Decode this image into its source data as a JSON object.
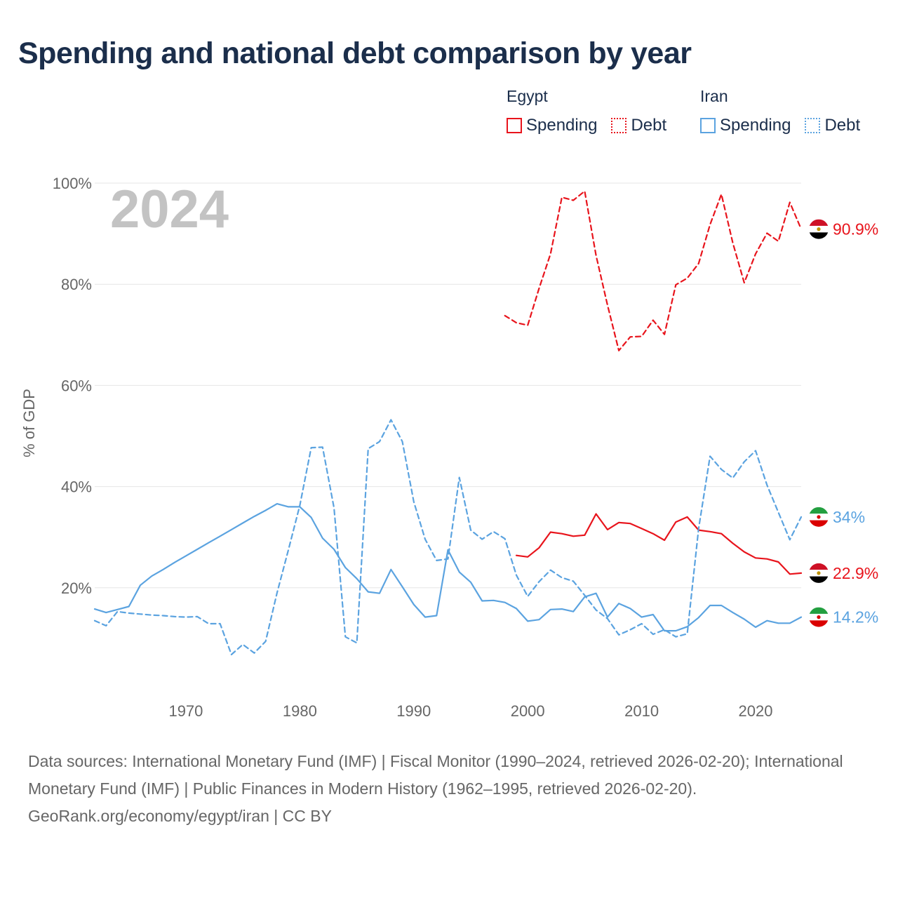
{
  "title": "Spending and national debt comparison by year",
  "year_watermark": "2024",
  "legend": {
    "groups": [
      {
        "country": "Egypt",
        "color": "#e8141c",
        "items": [
          {
            "label": "Spending",
            "style": "solid"
          },
          {
            "label": "Debt",
            "style": "dotted"
          }
        ]
      },
      {
        "country": "Iran",
        "color": "#5ba3e0",
        "items": [
          {
            "label": "Spending",
            "style": "solid"
          },
          {
            "label": "Debt",
            "style": "dotted"
          }
        ]
      }
    ]
  },
  "chart_data": {
    "type": "line",
    "title": "Spending and national debt comparison by year",
    "xlabel": "",
    "ylabel": "% of GDP",
    "xlim": [
      1962,
      2024
    ],
    "ylim": [
      0,
      100
    ],
    "x_ticks": [
      1970,
      1980,
      1990,
      2000,
      2010,
      2020
    ],
    "y_ticks": [
      20,
      40,
      60,
      80,
      100
    ],
    "y_tick_labels": [
      "20%",
      "40%",
      "60%",
      "80%",
      "100%"
    ],
    "grid": true,
    "series": [
      {
        "name": "Egypt Debt",
        "country": "Egypt",
        "metric": "Debt",
        "style": "dashed",
        "color": "#e8141c",
        "end_label": "90.9%",
        "x": [
          1998,
          1999,
          2000,
          2001,
          2002,
          2003,
          2004,
          2005,
          2006,
          2007,
          2008,
          2009,
          2010,
          2011,
          2012,
          2013,
          2014,
          2015,
          2016,
          2017,
          2018,
          2019,
          2020,
          2021,
          2022,
          2023,
          2024
        ],
        "y": [
          73.8,
          72.4,
          71.9,
          79.2,
          86.0,
          97.2,
          96.6,
          98.4,
          85.7,
          75.9,
          66.9,
          69.6,
          69.7,
          72.9,
          70.1,
          79.9,
          81.2,
          84.1,
          91.8,
          97.8,
          88.2,
          80.3,
          86.0,
          90.1,
          88.5,
          96.2,
          90.9
        ]
      },
      {
        "name": "Egypt Spending",
        "country": "Egypt",
        "metric": "Spending",
        "style": "solid",
        "color": "#e8141c",
        "end_label": "22.9%",
        "x": [
          1999,
          2000,
          2001,
          2002,
          2003,
          2004,
          2005,
          2006,
          2007,
          2008,
          2009,
          2010,
          2011,
          2012,
          2013,
          2014,
          2015,
          2016,
          2017,
          2018,
          2019,
          2020,
          2021,
          2022,
          2023,
          2024
        ],
        "y": [
          26.4,
          26.1,
          27.9,
          31.0,
          30.7,
          30.2,
          30.4,
          34.6,
          31.5,
          32.9,
          32.7,
          31.7,
          30.7,
          29.4,
          33.0,
          34.0,
          31.4,
          31.1,
          30.7,
          28.8,
          27.1,
          25.9,
          25.7,
          25.1,
          22.7,
          22.9
        ]
      },
      {
        "name": "Iran Debt",
        "country": "Iran",
        "metric": "Debt",
        "style": "dashed",
        "color": "#5ba3e0",
        "end_label": "34%",
        "x": [
          1962,
          1963,
          1964,
          1965,
          1966,
          1967,
          1968,
          1969,
          1970,
          1971,
          1972,
          1973,
          1974,
          1975,
          1976,
          1977,
          1978,
          1979,
          1980,
          1981,
          1982,
          1983,
          1984,
          1985,
          1986,
          1987,
          1988,
          1989,
          1990,
          1991,
          1992,
          1993,
          1994,
          1995,
          1996,
          1997,
          1998,
          1999,
          2000,
          2001,
          2002,
          2003,
          2004,
          2005,
          2006,
          2007,
          2008,
          2009,
          2010,
          2011,
          2012,
          2013,
          2014,
          2015,
          2016,
          2017,
          2018,
          2019,
          2020,
          2021,
          2022,
          2023,
          2024
        ],
        "y": [
          13.5,
          12.5,
          15.3,
          15.0,
          14.8,
          14.6,
          14.5,
          14.3,
          14.2,
          14.3,
          12.9,
          12.9,
          6.8,
          8.8,
          7.1,
          9.4,
          19.0,
          27.5,
          36.3,
          47.7,
          47.8,
          35.8,
          10.3,
          9.1,
          47.5,
          48.9,
          53.2,
          48.9,
          37.0,
          29.6,
          25.4,
          25.7,
          41.8,
          31.4,
          29.6,
          31.1,
          29.7,
          22.5,
          18.3,
          21.2,
          23.5,
          22.0,
          21.3,
          18.5,
          15.6,
          13.9,
          10.7,
          11.7,
          12.9,
          10.8,
          11.7,
          10.3,
          10.9,
          31.7,
          46.0,
          43.4,
          41.7,
          44.9,
          47.1,
          40.3,
          34.9,
          29.5,
          34.0
        ]
      },
      {
        "name": "Iran Spending",
        "country": "Iran",
        "metric": "Spending",
        "style": "solid",
        "color": "#5ba3e0",
        "end_label": "14.2%",
        "x": [
          1962,
          1963,
          1964,
          1965,
          1966,
          1967,
          1968,
          1969,
          1970,
          1971,
          1972,
          1973,
          1974,
          1975,
          1976,
          1977,
          1978,
          1979,
          1980,
          1981,
          1982,
          1983,
          1984,
          1985,
          1986,
          1987,
          1988,
          1989,
          1990,
          1991,
          1992,
          1993,
          1994,
          1995,
          1996,
          1997,
          1998,
          1999,
          2000,
          2001,
          2002,
          2003,
          2004,
          2005,
          2006,
          2007,
          2008,
          2009,
          2010,
          2011,
          2012,
          2013,
          2014,
          2015,
          2016,
          2017,
          2018,
          2019,
          2020,
          2021,
          2022,
          2023,
          2024
        ],
        "y": [
          15.8,
          15.1,
          15.7,
          16.3,
          20.5,
          22.3,
          23.6,
          25.0,
          26.3,
          27.6,
          28.9,
          30.2,
          31.5,
          32.8,
          34.1,
          35.3,
          36.6,
          36.0,
          36.0,
          33.9,
          29.8,
          27.6,
          24.0,
          21.8,
          19.2,
          18.9,
          23.6,
          20.2,
          16.7,
          14.2,
          14.5,
          27.5,
          23.1,
          21.1,
          17.4,
          17.5,
          17.1,
          15.9,
          13.4,
          13.7,
          15.7,
          15.8,
          15.3,
          18.2,
          18.9,
          14.2,
          16.9,
          15.9,
          14.2,
          14.7,
          11.5,
          11.5,
          12.3,
          14.1,
          16.5,
          16.5,
          15.1,
          13.8,
          12.2,
          13.5,
          13.0,
          13.0,
          14.2
        ]
      }
    ],
    "end_markers": [
      {
        "country": "Egypt",
        "series": "Egypt Debt",
        "label": "90.9%"
      },
      {
        "country": "Iran",
        "series": "Iran Debt",
        "label": "34%"
      },
      {
        "country": "Egypt",
        "series": "Egypt Spending",
        "label": "22.9%"
      },
      {
        "country": "Iran",
        "series": "Iran Spending",
        "label": "14.2%"
      }
    ]
  },
  "sources": {
    "line1": "Data sources: International Monetary Fund (IMF) | Fiscal Monitor (1990–2024, retrieved 2026-02-20); International Monetary Fund (IMF) | Public Finances in Modern History (1962–1995, retrieved 2026-02-20).",
    "line2": "GeoRank.org/economy/egypt/iran | CC BY"
  }
}
